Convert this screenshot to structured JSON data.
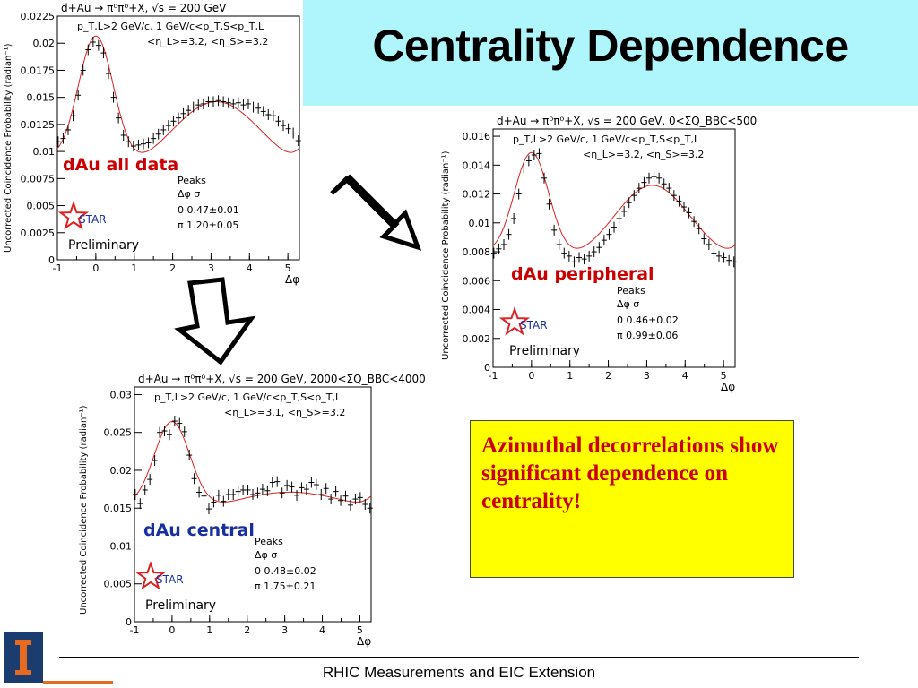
{
  "slide": {
    "title": "Centrality Dependence",
    "callout": "Azimuthal decorrelations show significant dependence on centrality!",
    "footer": "RHIC Measurements and EIC Extension",
    "colors": {
      "title_bg": "#aef6fb",
      "callout_bg": "#ffff00",
      "callout_text": "#cc0000",
      "fit_line": "#e02020",
      "label_red": "#cc0000",
      "label_blue": "#1a2f9e",
      "logo": "#1b3c6e"
    }
  },
  "chart_data": [
    {
      "type": "scatter",
      "id": "all",
      "title": "d+Au  →  π⁰π⁰+X, √s = 200 GeV",
      "cuts_line1": "p_T,L>2 GeV/c,  1 GeV/c<p_T,S<p_T,L",
      "cuts_line2": "<η_L>=3.2, <η_S>=3.2",
      "xlabel": "Δφ",
      "ylabel": "Uncorrected Coincidence Probability (radian⁻¹)",
      "xlim": [
        -1,
        5.3
      ],
      "ylim": [
        0,
        0.0225
      ],
      "yticks": [
        "0",
        "0.0025",
        "0.005",
        "0.0075",
        "0.01",
        "0.0125",
        "0.015",
        "0.0175",
        "0.02",
        "0.0225"
      ],
      "xticks": [
        "-1",
        "0",
        "1",
        "2",
        "3",
        "4",
        "5"
      ],
      "label": "dAu all data",
      "peaks_header": "Peaks",
      "peaks_cols": "Δφ    σ",
      "peaks_rows": [
        "0     0.47±0.01",
        "π     1.20±0.05"
      ],
      "star": "STAR",
      "preliminary": "Preliminary",
      "x": [
        -0.98,
        -0.85,
        -0.72,
        -0.59,
        -0.46,
        -0.33,
        -0.2,
        -0.07,
        0.07,
        0.2,
        0.33,
        0.46,
        0.59,
        0.72,
        0.85,
        0.98,
        1.11,
        1.24,
        1.37,
        1.5,
        1.63,
        1.76,
        1.89,
        2.02,
        2.15,
        2.28,
        2.41,
        2.54,
        2.67,
        2.8,
        2.93,
        3.06,
        3.19,
        3.32,
        3.45,
        3.58,
        3.71,
        3.84,
        3.97,
        4.1,
        4.23,
        4.36,
        4.49,
        4.62,
        4.75,
        4.88,
        5.01,
        5.14,
        5.27
      ],
      "y": [
        0.0109,
        0.0112,
        0.012,
        0.0133,
        0.0152,
        0.0175,
        0.0194,
        0.0201,
        0.0198,
        0.0191,
        0.0172,
        0.015,
        0.0131,
        0.0115,
        0.0109,
        0.0105,
        0.0106,
        0.0107,
        0.0108,
        0.0112,
        0.0116,
        0.012,
        0.0124,
        0.0128,
        0.0131,
        0.0135,
        0.0138,
        0.0141,
        0.0143,
        0.0144,
        0.0146,
        0.0146,
        0.0147,
        0.0146,
        0.0145,
        0.0144,
        0.0145,
        0.0143,
        0.0144,
        0.0141,
        0.014,
        0.0137,
        0.0134,
        0.0133,
        0.0128,
        0.0124,
        0.0121,
        0.0117,
        0.011
      ],
      "fit": {
        "base": 0.0075,
        "near_amp": 0.0127,
        "near_sigma": 0.47,
        "away_amp": 0.0071,
        "away_sigma": 1.2
      }
    },
    {
      "type": "scatter",
      "id": "peripheral",
      "title": "d+Au  →  π⁰π⁰+X, √s = 200 GeV, 0<ΣQ_BBC<500",
      "cuts_line1": "p_T,L>2 GeV/c,  1 GeV/c<p_T,S<p_T,L",
      "cuts_line2": "<η_L>=3.2, <η_S>=3.2",
      "xlabel": "Δφ",
      "ylabel": "Uncorrected Coincidence Probability (radian⁻¹)",
      "xlim": [
        -1,
        5.3
      ],
      "ylim": [
        0,
        0.0165
      ],
      "yticks": [
        "0",
        "0.002",
        "0.004",
        "0.006",
        "0.008",
        "0.01",
        "0.012",
        "0.014",
        "0.016"
      ],
      "xticks": [
        "-1",
        "0",
        "1",
        "2",
        "3",
        "4",
        "5"
      ],
      "label": "dAu peripheral",
      "peaks_header": "Peaks",
      "peaks_cols": "Δφ    σ",
      "peaks_rows": [
        "0     0.46±0.02",
        "π     0.99±0.06"
      ],
      "star": "STAR",
      "preliminary": "Preliminary",
      "x": [
        -0.98,
        -0.85,
        -0.72,
        -0.59,
        -0.46,
        -0.33,
        -0.2,
        -0.07,
        0.07,
        0.2,
        0.33,
        0.46,
        0.59,
        0.72,
        0.85,
        0.98,
        1.11,
        1.24,
        1.37,
        1.5,
        1.63,
        1.76,
        1.89,
        2.02,
        2.15,
        2.28,
        2.41,
        2.54,
        2.67,
        2.8,
        2.93,
        3.06,
        3.19,
        3.32,
        3.45,
        3.58,
        3.71,
        3.84,
        3.97,
        4.1,
        4.23,
        4.36,
        4.49,
        4.62,
        4.75,
        4.88,
        5.01,
        5.14,
        5.27
      ],
      "y": [
        0.0079,
        0.0082,
        0.0085,
        0.0092,
        0.0103,
        0.012,
        0.0138,
        0.0143,
        0.0147,
        0.0148,
        0.0131,
        0.0113,
        0.0095,
        0.0085,
        0.0079,
        0.0077,
        0.0073,
        0.0076,
        0.0075,
        0.0077,
        0.008,
        0.0083,
        0.0088,
        0.0092,
        0.0097,
        0.0103,
        0.0108,
        0.0114,
        0.0119,
        0.0124,
        0.0128,
        0.0131,
        0.0132,
        0.0131,
        0.0127,
        0.0124,
        0.0119,
        0.0115,
        0.0111,
        0.0107,
        0.0101,
        0.0096,
        0.0089,
        0.0085,
        0.0079,
        0.0077,
        0.0076,
        0.0074,
        0.0073
      ],
      "fit": {
        "base": 0.0072,
        "near_amp": 0.0076,
        "near_sigma": 0.46,
        "away_amp": 0.0054,
        "away_sigma": 0.99
      }
    },
    {
      "type": "scatter",
      "id": "central",
      "title": "d+Au  →  π⁰π⁰+X, √s = 200 GeV, 2000<ΣQ_BBC<4000",
      "cuts_line1": "p_T,L>2 GeV/c,  1 GeV/c<p_T,S<p_T,L",
      "cuts_line2": "<η_L>=3.1, <η_S>=3.2",
      "xlabel": "Δφ",
      "ylabel": "Uncorrected Coincidence Probability (radian⁻¹)",
      "xlim": [
        -1,
        5.3
      ],
      "ylim": [
        0,
        0.031
      ],
      "yticks": [
        "0",
        "0.005",
        "0.01",
        "0.015",
        "0.02",
        "0.025",
        "0.03"
      ],
      "xticks": [
        "-1",
        "0",
        "1",
        "2",
        "3",
        "4",
        "5"
      ],
      "label": "dAu central",
      "peaks_header": "Peaks",
      "peaks_cols": "Δφ    σ",
      "peaks_rows": [
        "0     0.48±0.02",
        "π     1.75±0.21"
      ],
      "star": "STAR",
      "preliminary": "Preliminary",
      "x": [
        -0.98,
        -0.85,
        -0.72,
        -0.59,
        -0.46,
        -0.33,
        -0.2,
        -0.07,
        0.07,
        0.2,
        0.33,
        0.46,
        0.59,
        0.72,
        0.85,
        0.98,
        1.11,
        1.24,
        1.37,
        1.5,
        1.63,
        1.76,
        1.89,
        2.02,
        2.15,
        2.28,
        2.41,
        2.54,
        2.67,
        2.8,
        2.93,
        3.06,
        3.19,
        3.32,
        3.45,
        3.58,
        3.71,
        3.84,
        3.97,
        4.1,
        4.23,
        4.36,
        4.49,
        4.62,
        4.75,
        4.88,
        5.01,
        5.14,
        5.27
      ],
      "y": [
        0.0168,
        0.0156,
        0.0174,
        0.0188,
        0.0213,
        0.025,
        0.0252,
        0.0247,
        0.0265,
        0.0262,
        0.0251,
        0.022,
        0.0189,
        0.0171,
        0.0166,
        0.0149,
        0.0158,
        0.0167,
        0.0159,
        0.0168,
        0.0168,
        0.0172,
        0.0174,
        0.0174,
        0.0168,
        0.017,
        0.0175,
        0.0173,
        0.0184,
        0.0185,
        0.017,
        0.018,
        0.0178,
        0.0167,
        0.0177,
        0.0175,
        0.0184,
        0.0181,
        0.0168,
        0.0176,
        0.0162,
        0.0172,
        0.016,
        0.0166,
        0.0154,
        0.0162,
        0.0164,
        0.0155,
        0.015
      ],
      "fit": {
        "base": 0.013,
        "near_amp": 0.0118,
        "near_sigma": 0.48,
        "away_amp": 0.0041,
        "away_sigma": 1.75
      }
    }
  ]
}
